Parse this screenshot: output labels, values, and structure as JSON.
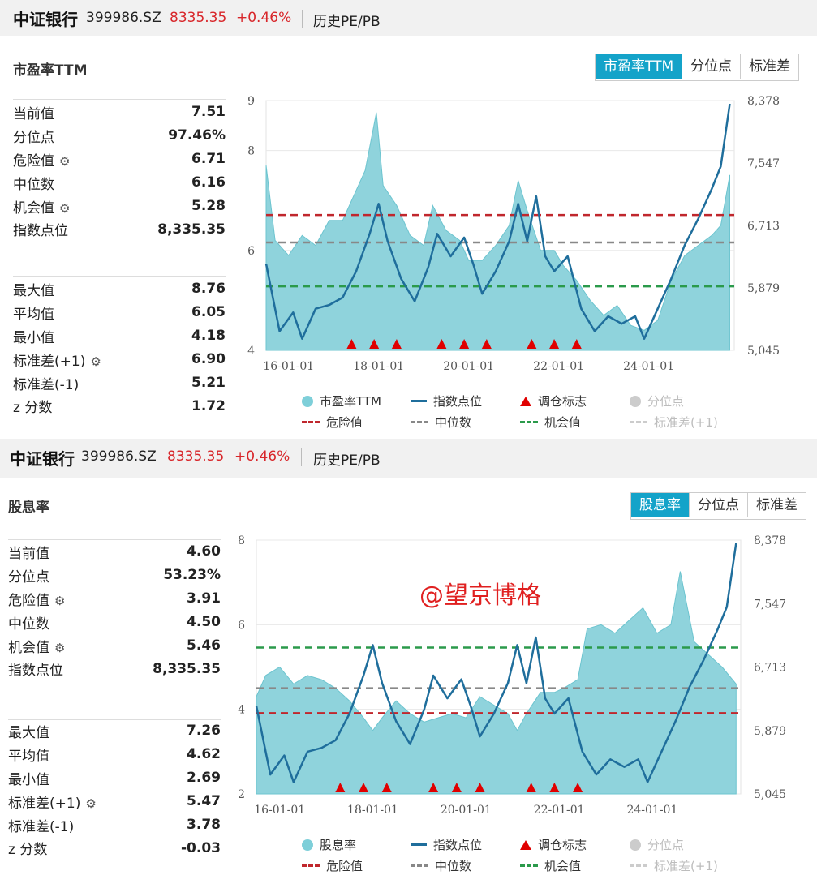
{
  "panels": {
    "pe": {
      "header": {
        "name": "中证银行",
        "code": "399986.SZ",
        "price": "8335.35",
        "change": "+0.46%",
        "history_tab": "历史PE/PB"
      },
      "metric_title": "市盈率TTM",
      "tabs": [
        {
          "label": "市盈率TTM",
          "active": true
        },
        {
          "label": "分位点",
          "active": false
        },
        {
          "label": "标准差",
          "active": false
        }
      ],
      "stats_top": [
        {
          "label": "当前值",
          "value": "7.51",
          "gear": false
        },
        {
          "label": "分位点",
          "value": "97.46%",
          "gear": false
        },
        {
          "label": "危险值",
          "value": "6.71",
          "gear": true
        },
        {
          "label": "中位数",
          "value": "6.16",
          "gear": false
        },
        {
          "label": "机会值",
          "value": "5.28",
          "gear": true
        },
        {
          "label": "指数点位",
          "value": "8,335.35",
          "gear": false
        }
      ],
      "stats_bottom": [
        {
          "label": "最大值",
          "value": "8.76",
          "gear": false
        },
        {
          "label": "平均值",
          "value": "6.05",
          "gear": false
        },
        {
          "label": "最小值",
          "value": "4.18",
          "gear": false
        },
        {
          "label": "标准差(+1)",
          "value": "6.90",
          "gear": true
        },
        {
          "label": "标准差(-1)",
          "value": "5.21",
          "gear": false
        },
        {
          "label": "z 分数",
          "value": "1.72",
          "gear": false
        }
      ],
      "legend": {
        "row1": [
          {
            "label": "市盈率TTM",
            "kind": "dot",
            "color": "#7ecfd9",
            "dim": false
          },
          {
            "label": "指数点位",
            "kind": "line",
            "color": "#1f6e9c",
            "dim": false
          },
          {
            "label": "调仓标志",
            "kind": "tri",
            "color": "#e00000",
            "dim": false
          },
          {
            "label": "分位点",
            "kind": "dot",
            "color": "#cccccc",
            "dim": true
          }
        ],
        "row2": [
          {
            "label": "危险值",
            "kind": "dash",
            "color": "#c0272d",
            "dim": false
          },
          {
            "label": "中位数",
            "kind": "dash",
            "color": "#888888",
            "dim": false
          },
          {
            "label": "机会值",
            "kind": "dash",
            "color": "#2b9a4b",
            "dim": false
          },
          {
            "label": "标准差(+1)",
            "kind": "dash",
            "color": "#cccccc",
            "dim": true
          }
        ]
      }
    },
    "dy": {
      "header": {
        "name": "中证银行",
        "code": "399986.SZ",
        "price": "8335.35",
        "change": "+0.46%",
        "history_tab": "历史PE/PB"
      },
      "metric_title": "股息率",
      "tabs": [
        {
          "label": "股息率",
          "active": true
        },
        {
          "label": "分位点",
          "active": false
        },
        {
          "label": "标准差",
          "active": false
        }
      ],
      "stats_top": [
        {
          "label": "当前值",
          "value": "4.60",
          "gear": false
        },
        {
          "label": "分位点",
          "value": "53.23%",
          "gear": false
        },
        {
          "label": "危险值",
          "value": "3.91",
          "gear": true
        },
        {
          "label": "中位数",
          "value": "4.50",
          "gear": false
        },
        {
          "label": "机会值",
          "value": "5.46",
          "gear": true
        },
        {
          "label": "指数点位",
          "value": "8,335.35",
          "gear": false
        }
      ],
      "stats_bottom": [
        {
          "label": "最大值",
          "value": "7.26",
          "gear": false
        },
        {
          "label": "平均值",
          "value": "4.62",
          "gear": false
        },
        {
          "label": "最小值",
          "value": "2.69",
          "gear": false
        },
        {
          "label": "标准差(+1)",
          "value": "5.47",
          "gear": true
        },
        {
          "label": "标准差(-1)",
          "value": "3.78",
          "gear": false
        },
        {
          "label": "z 分数",
          "value": "-0.03",
          "gear": false
        }
      ],
      "legend": {
        "row1": [
          {
            "label": "股息率",
            "kind": "dot",
            "color": "#7ecfd9",
            "dim": false
          },
          {
            "label": "指数点位",
            "kind": "line",
            "color": "#1f6e9c",
            "dim": false
          },
          {
            "label": "调仓标志",
            "kind": "tri",
            "color": "#e00000",
            "dim": false
          },
          {
            "label": "分位点",
            "kind": "dot",
            "color": "#cccccc",
            "dim": true
          }
        ],
        "row2": [
          {
            "label": "危险值",
            "kind": "dash",
            "color": "#c0272d",
            "dim": false
          },
          {
            "label": "中位数",
            "kind": "dash",
            "color": "#888888",
            "dim": false
          },
          {
            "label": "机会值",
            "kind": "dash",
            "color": "#2b9a4b",
            "dim": false
          },
          {
            "label": "标准差(+1)",
            "kind": "dash",
            "color": "#cccccc",
            "dim": true
          }
        ]
      },
      "watermark": "@望京博格"
    }
  },
  "chart_data": [
    {
      "type": "area",
      "title": "市盈率TTM",
      "x_ticks": [
        "16-01-01",
        "18-01-01",
        "20-01-01",
        "22-01-01",
        "24-01-01"
      ],
      "x_range": [
        2015.5,
        2025.9
      ],
      "y_left": {
        "ticks": [
          9,
          8,
          6,
          4
        ],
        "range": [
          4,
          9
        ]
      },
      "y_right": {
        "ticks": [
          "8,378",
          "7,547",
          "6,713",
          "5,879",
          "5,045"
        ],
        "range": [
          5045,
          8378
        ]
      },
      "series": [
        {
          "name": "市盈率TTM",
          "kind": "area",
          "color": "#8fd3dc",
          "points": [
            [
              2015.5,
              7.7
            ],
            [
              2015.7,
              6.2
            ],
            [
              2016.0,
              5.9
            ],
            [
              2016.3,
              6.3
            ],
            [
              2016.6,
              6.1
            ],
            [
              2016.9,
              6.6
            ],
            [
              2017.2,
              6.6
            ],
            [
              2017.4,
              7.0
            ],
            [
              2017.7,
              7.6
            ],
            [
              2017.95,
              8.76
            ],
            [
              2018.1,
              7.3
            ],
            [
              2018.4,
              6.9
            ],
            [
              2018.7,
              6.3
            ],
            [
              2019.0,
              6.1
            ],
            [
              2019.2,
              6.9
            ],
            [
              2019.5,
              6.4
            ],
            [
              2019.8,
              6.2
            ],
            [
              2020.0,
              5.8
            ],
            [
              2020.3,
              5.8
            ],
            [
              2020.6,
              6.1
            ],
            [
              2020.9,
              6.5
            ],
            [
              2021.1,
              7.4
            ],
            [
              2021.3,
              6.8
            ],
            [
              2021.6,
              6.0
            ],
            [
              2021.9,
              6.0
            ],
            [
              2022.1,
              5.7
            ],
            [
              2022.4,
              5.4
            ],
            [
              2022.7,
              5.0
            ],
            [
              2023.0,
              4.7
            ],
            [
              2023.3,
              4.9
            ],
            [
              2023.6,
              4.5
            ],
            [
              2023.9,
              4.4
            ],
            [
              2024.2,
              4.6
            ],
            [
              2024.5,
              5.4
            ],
            [
              2024.8,
              5.9
            ],
            [
              2025.1,
              6.1
            ],
            [
              2025.4,
              6.3
            ],
            [
              2025.6,
              6.5
            ],
            [
              2025.8,
              7.51
            ]
          ]
        },
        {
          "name": "指数点位",
          "kind": "line",
          "color": "#1f6e9c",
          "points": [
            [
              2015.5,
              6200
            ],
            [
              2015.8,
              5300
            ],
            [
              2016.1,
              5550
            ],
            [
              2016.3,
              5200
            ],
            [
              2016.6,
              5600
            ],
            [
              2016.9,
              5650
            ],
            [
              2017.2,
              5750
            ],
            [
              2017.5,
              6100
            ],
            [
              2017.8,
              6600
            ],
            [
              2018.0,
              7000
            ],
            [
              2018.2,
              6500
            ],
            [
              2018.5,
              6000
            ],
            [
              2018.8,
              5700
            ],
            [
              2019.1,
              6150
            ],
            [
              2019.3,
              6600
            ],
            [
              2019.6,
              6300
            ],
            [
              2019.9,
              6550
            ],
            [
              2020.1,
              6200
            ],
            [
              2020.3,
              5800
            ],
            [
              2020.6,
              6100
            ],
            [
              2020.9,
              6500
            ],
            [
              2021.1,
              7000
            ],
            [
              2021.3,
              6500
            ],
            [
              2021.5,
              7100
            ],
            [
              2021.7,
              6300
            ],
            [
              2021.9,
              6100
            ],
            [
              2022.2,
              6300
            ],
            [
              2022.5,
              5600
            ],
            [
              2022.8,
              5300
            ],
            [
              2023.1,
              5500
            ],
            [
              2023.4,
              5400
            ],
            [
              2023.7,
              5500
            ],
            [
              2023.9,
              5200
            ],
            [
              2024.2,
              5600
            ],
            [
              2024.5,
              6000
            ],
            [
              2024.8,
              6450
            ],
            [
              2025.1,
              6800
            ],
            [
              2025.4,
              7200
            ],
            [
              2025.6,
              7500
            ],
            [
              2025.8,
              8335
            ]
          ]
        }
      ],
      "reference_lines": [
        {
          "name": "危险值",
          "value": 6.71,
          "color": "#c0272d"
        },
        {
          "name": "中位数",
          "value": 6.16,
          "color": "#888888"
        },
        {
          "name": "机会值",
          "value": 5.28,
          "color": "#2b9a4b"
        }
      ],
      "rebalance_markers": [
        2017.4,
        2017.9,
        2018.4,
        2019.4,
        2019.9,
        2020.4,
        2021.4,
        2021.9,
        2022.4
      ]
    },
    {
      "type": "area",
      "title": "股息率",
      "x_ticks": [
        "16-01-01",
        "18-01-01",
        "20-01-01",
        "22-01-01",
        "24-01-01"
      ],
      "x_range": [
        2015.5,
        2025.9
      ],
      "y_left": {
        "ticks": [
          8,
          6,
          4,
          2
        ],
        "range": [
          2,
          8
        ]
      },
      "y_right": {
        "ticks": [
          "8,378",
          "7,547",
          "6,713",
          "5,879",
          "5,045"
        ],
        "range": [
          5045,
          8378
        ]
      },
      "series": [
        {
          "name": "股息率",
          "kind": "area",
          "color": "#8fd3dc",
          "points": [
            [
              2015.5,
              4.3
            ],
            [
              2015.7,
              4.8
            ],
            [
              2016.0,
              5.0
            ],
            [
              2016.3,
              4.6
            ],
            [
              2016.6,
              4.8
            ],
            [
              2016.9,
              4.7
            ],
            [
              2017.2,
              4.5
            ],
            [
              2017.5,
              4.2
            ],
            [
              2017.8,
              3.8
            ],
            [
              2018.0,
              3.5
            ],
            [
              2018.2,
              3.8
            ],
            [
              2018.5,
              4.2
            ],
            [
              2018.8,
              3.9
            ],
            [
              2019.1,
              3.7
            ],
            [
              2019.4,
              3.8
            ],
            [
              2019.7,
              3.9
            ],
            [
              2020.0,
              3.8
            ],
            [
              2020.3,
              4.3
            ],
            [
              2020.6,
              4.1
            ],
            [
              2020.9,
              3.9
            ],
            [
              2021.1,
              3.5
            ],
            [
              2021.3,
              3.9
            ],
            [
              2021.6,
              4.4
            ],
            [
              2021.9,
              4.4
            ],
            [
              2022.1,
              4.5
            ],
            [
              2022.4,
              4.7
            ],
            [
              2022.6,
              5.9
            ],
            [
              2022.9,
              6.0
            ],
            [
              2023.2,
              5.8
            ],
            [
              2023.5,
              6.1
            ],
            [
              2023.8,
              6.4
            ],
            [
              2024.1,
              5.8
            ],
            [
              2024.4,
              6.0
            ],
            [
              2024.6,
              7.26
            ],
            [
              2024.9,
              5.6
            ],
            [
              2025.2,
              5.3
            ],
            [
              2025.5,
              5.0
            ],
            [
              2025.8,
              4.6
            ]
          ]
        },
        {
          "name": "指数点位",
          "kind": "line",
          "color": "#1f6e9c",
          "points": [
            [
              2015.5,
              6200
            ],
            [
              2015.8,
              5300
            ],
            [
              2016.1,
              5550
            ],
            [
              2016.3,
              5200
            ],
            [
              2016.6,
              5600
            ],
            [
              2016.9,
              5650
            ],
            [
              2017.2,
              5750
            ],
            [
              2017.5,
              6100
            ],
            [
              2017.8,
              6600
            ],
            [
              2018.0,
              7000
            ],
            [
              2018.2,
              6500
            ],
            [
              2018.5,
              6000
            ],
            [
              2018.8,
              5700
            ],
            [
              2019.1,
              6150
            ],
            [
              2019.3,
              6600
            ],
            [
              2019.6,
              6300
            ],
            [
              2019.9,
              6550
            ],
            [
              2020.1,
              6200
            ],
            [
              2020.3,
              5800
            ],
            [
              2020.6,
              6100
            ],
            [
              2020.9,
              6500
            ],
            [
              2021.1,
              7000
            ],
            [
              2021.3,
              6500
            ],
            [
              2021.5,
              7100
            ],
            [
              2021.7,
              6300
            ],
            [
              2021.9,
              6100
            ],
            [
              2022.2,
              6300
            ],
            [
              2022.5,
              5600
            ],
            [
              2022.8,
              5300
            ],
            [
              2023.1,
              5500
            ],
            [
              2023.4,
              5400
            ],
            [
              2023.7,
              5500
            ],
            [
              2023.9,
              5200
            ],
            [
              2024.2,
              5600
            ],
            [
              2024.5,
              6000
            ],
            [
              2024.8,
              6450
            ],
            [
              2025.1,
              6800
            ],
            [
              2025.4,
              7200
            ],
            [
              2025.6,
              7500
            ],
            [
              2025.8,
              8335
            ]
          ]
        }
      ],
      "reference_lines": [
        {
          "name": "危险值",
          "value": 3.91,
          "color": "#c0272d"
        },
        {
          "name": "中位数",
          "value": 4.5,
          "color": "#888888"
        },
        {
          "name": "机会值",
          "value": 5.46,
          "color": "#2b9a4b"
        }
      ],
      "rebalance_markers": [
        2017.3,
        2017.8,
        2018.3,
        2019.3,
        2019.8,
        2020.3,
        2021.4,
        2021.9,
        2022.4
      ]
    }
  ]
}
